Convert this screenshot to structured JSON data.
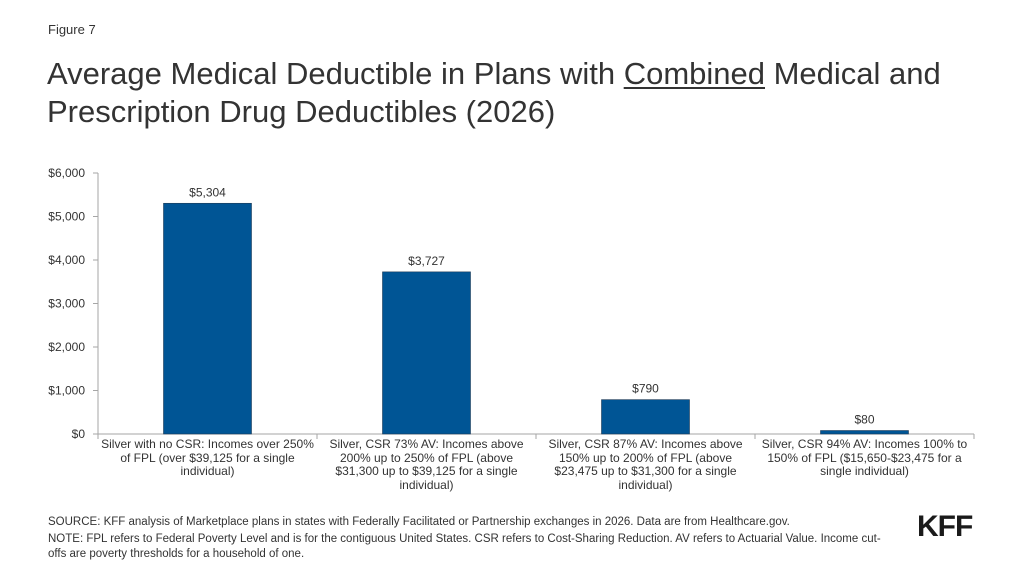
{
  "figure_label": "Figure 7",
  "title": {
    "part1": "Average Medical Deductible in Plans with ",
    "underlined": "Combined",
    "part2": " Medical and Prescription Drug Deductibles (2026)"
  },
  "colors": {
    "bar": "#005595",
    "axis": "#a6a6a6",
    "text": "#333333"
  },
  "chart_data": {
    "type": "bar",
    "title": "Average Medical Deductible in Plans with Combined Medical and Prescription Drug Deductibles (2026)",
    "xlabel": "",
    "ylabel": "",
    "ylim": [
      0,
      6000
    ],
    "yticks": [
      0,
      1000,
      2000,
      3000,
      4000,
      5000,
      6000
    ],
    "ytick_labels": [
      "$0",
      "$1,000",
      "$2,000",
      "$3,000",
      "$4,000",
      "$5,000",
      "$6,000"
    ],
    "grid": false,
    "legend": "none",
    "categories": [
      "Silver with no CSR: Incomes over 250% of FPL (over $39,125 for a single individual)",
      "Silver, CSR 73% AV: Incomes above 200% up to 250% of FPL (above $31,300 up to $39,125 for a single individual)",
      "Silver, CSR 87% AV: Incomes above 150% up to 200% of FPL (above $23,475 up to $31,300 for a single individual)",
      "Silver, CSR 94% AV: Incomes 100% to 150% of FPL ($15,650-$23,475 for a single individual)"
    ],
    "values": [
      5304,
      3727,
      790,
      80
    ],
    "data_labels": [
      "$5,304",
      "$3,727",
      "$790",
      "$80"
    ]
  },
  "footer": {
    "source": "SOURCE: KFF analysis of Marketplace plans in states with Federally Facilitated or Partnership exchanges in 2026. Data are from Healthcare.gov.",
    "note": "NOTE: FPL refers to Federal Poverty Level and is for the contiguous United States. CSR refers to Cost-Sharing Reduction. AV refers to Actuarial Value. Income cut-offs are poverty thresholds for a household of one."
  },
  "logo": "KFF"
}
